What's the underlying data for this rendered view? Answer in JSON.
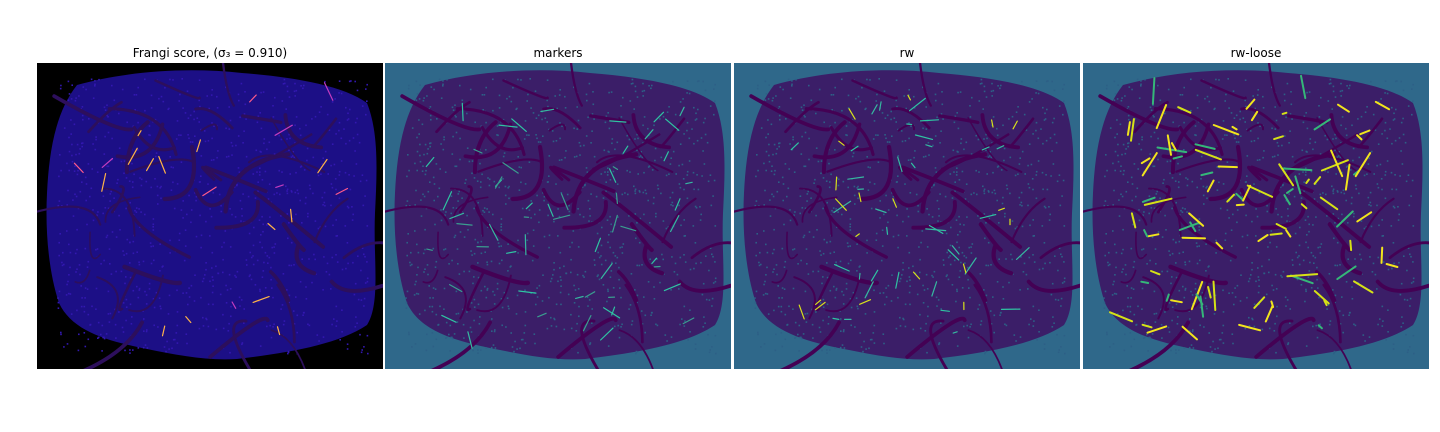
{
  "panels": [
    {
      "title": "Frangi score, (σ₃ = 0.910)",
      "background": "#000000",
      "blob": "#1c0f86",
      "vessel": "#2d0f5c",
      "accents": [
        "#ff5a8a",
        "#ffb347",
        "#c43cbf"
      ]
    },
    {
      "title": "markers",
      "background": "#2f688a",
      "blob": "#3b1e68",
      "vessel": "#440154",
      "accents": [
        "#2fc4a2",
        "#36b8a0",
        "#3a9d8f"
      ]
    },
    {
      "title": "rw",
      "background": "#2f688a",
      "blob": "#3b1e68",
      "vessel": "#440154",
      "accents": [
        "#2fc4a2",
        "#d7e21c",
        "#36b8a0"
      ]
    },
    {
      "title": "rw-loose",
      "background": "#2f688a",
      "blob": "#3b1e68",
      "vessel": "#440154",
      "accents": [
        "#f2e51c",
        "#35b779",
        "#d6e216"
      ]
    }
  ]
}
